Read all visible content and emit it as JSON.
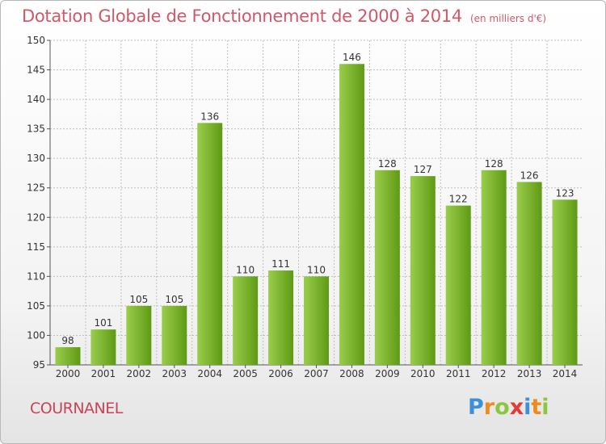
{
  "header": {
    "title": "Dotation Globale de Fonctionnement de 2000 à 2014",
    "subtitle": "(en milliers d'€)"
  },
  "footer": {
    "place": "COURNANEL",
    "logo_letters": [
      "P",
      "r",
      "o",
      "x",
      "i",
      "t",
      "i"
    ],
    "logo_colors": [
      "#3c8fd8",
      "#f08a1c",
      "#8cc63f",
      "#e53935",
      "#3c8fd8",
      "#f08a1c",
      "#8cc63f"
    ]
  },
  "colors": {
    "bar_light": "#9acd4c",
    "bar_dark": "#5f9a14",
    "grid": "#bfbfbf",
    "title": "#d0586a"
  },
  "chart_data": {
    "type": "bar",
    "categories": [
      "2000",
      "2001",
      "2002",
      "2003",
      "2004",
      "2005",
      "2006",
      "2007",
      "2008",
      "2009",
      "2010",
      "2011",
      "2012",
      "2013",
      "2014"
    ],
    "values": [
      98,
      101,
      105,
      105,
      136,
      110,
      111,
      110,
      146,
      128,
      127,
      122,
      128,
      126,
      123
    ],
    "title": "Dotation Globale de Fonctionnement de 2000 à 2014",
    "ylim": [
      95,
      150
    ],
    "yticks": [
      95,
      100,
      105,
      110,
      115,
      120,
      125,
      130,
      135,
      140,
      145,
      150
    ],
    "grid": true,
    "data_labels": true
  }
}
